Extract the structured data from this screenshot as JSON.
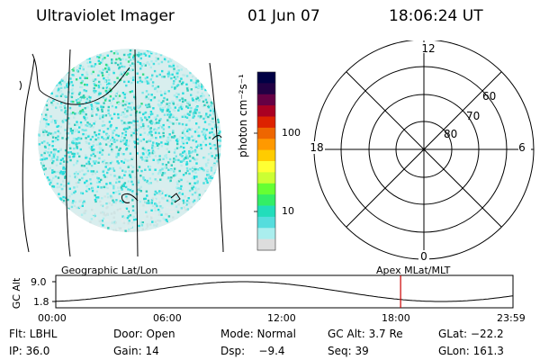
{
  "header": {
    "title": "Ultraviolet Imager",
    "date": "01 Jun 07",
    "time": "18:06:24 UT"
  },
  "colorbar": {
    "label": "photon cm⁻²s⁻¹",
    "ticks": [
      "100",
      "10"
    ],
    "colors": [
      "#000044",
      "#220044",
      "#660044",
      "#aa0022",
      "#dd2200",
      "#ee6600",
      "#ff9900",
      "#ffcc00",
      "#ffff33",
      "#ccff33",
      "#66ff33",
      "#33ee66",
      "#22ddbb",
      "#55dddd",
      "#aaeeee",
      "#dddddd"
    ]
  },
  "polar_plot": {
    "labels": {
      "top": "12",
      "left": "18",
      "right": "6",
      "bottom": "0"
    },
    "lat_labels": [
      "80",
      "70",
      "60"
    ]
  },
  "timeline": {
    "left_caption": "Geographic Lat/Lon",
    "right_caption": "Apex MLat/MLT",
    "ylabel": "GC Alt",
    "ymax": "9.0",
    "ymin": "1.8",
    "x_ticks": [
      "00:00",
      "06:00",
      "12:00",
      "18:00",
      "23:59"
    ],
    "current_time_hours": 18.1,
    "marker_color": "#cc0000"
  },
  "info": {
    "row1": {
      "flt": "Flt: LBHL",
      "door": "Door: Open",
      "mode": "Mode: Normal",
      "gcalt": "GC Alt: 3.7 Re",
      "glat": "GLat: −22.2"
    },
    "row2": {
      "ip": "IP: 36.0",
      "gain": "Gain: 14",
      "dsp": "Dsp:    −9.4",
      "seq": "Seq: 39",
      "glon": "GLon: 161.3"
    }
  }
}
